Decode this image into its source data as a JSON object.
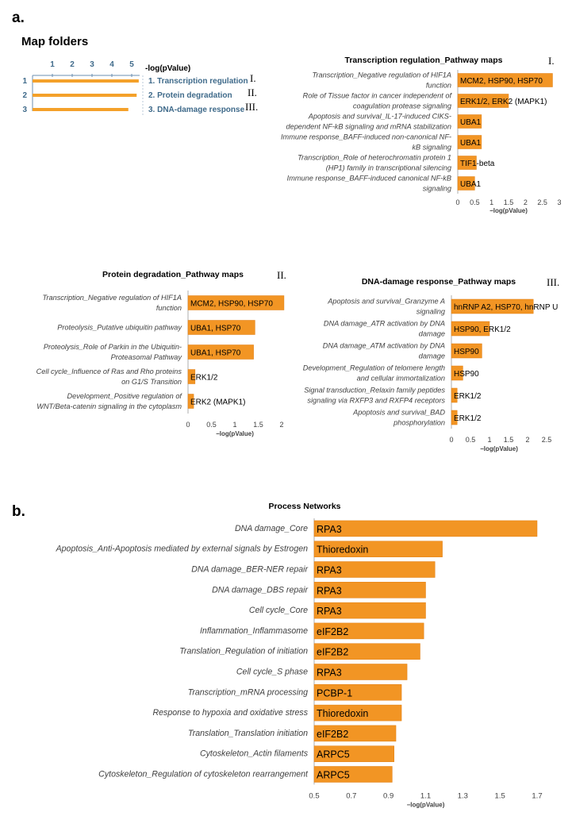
{
  "panel_labels": {
    "a": "a.",
    "b": "b."
  },
  "map_folders": {
    "title": "Map folders",
    "axis_label": "-log(pValue)",
    "ticks": [
      "1",
      "2",
      "3",
      "4",
      "5"
    ],
    "bar_color": "#f4a12a",
    "rows": [
      {
        "index": "1",
        "label": "1. Transcription regulation",
        "value": 5.1,
        "roman": "I."
      },
      {
        "index": "2",
        "label": "2. Protein degradation",
        "value": 5.0,
        "roman": "II."
      },
      {
        "index": "3",
        "label": "3. DNA-damage response",
        "value": 4.6,
        "roman": "III."
      }
    ]
  },
  "chart_data": [
    {
      "id": "transcription",
      "type": "bar",
      "orientation": "horizontal",
      "title": "Transcription regulation_Pathway maps",
      "roman": "I.",
      "xlabel": "−log(pValue)",
      "xlim": [
        0,
        3
      ],
      "xticks": [
        "0",
        "0.5",
        "1",
        "1.5",
        "2",
        "2.5",
        "3"
      ],
      "categories": [
        [
          "Transcription_Negative regulation of HIF1A",
          "function"
        ],
        [
          "Role of Tissue factor in cancer independent of",
          "coagulation protease signaling"
        ],
        [
          "Apoptosis and survival_IL-17-induced CIKS-",
          "dependent NF-kB signaling and mRNA stabilization"
        ],
        [
          "Immune response_BAFF-induced non-canonical NF-",
          "kB signaling"
        ],
        [
          "Transcription_Role of heterochromatin protein 1",
          "(HP1) family in transcriptional silencing"
        ],
        [
          "Immune response_BAFF-induced canonical NF-kB",
          "signaling"
        ]
      ],
      "values": [
        2.8,
        1.5,
        0.7,
        0.7,
        0.55,
        0.5
      ],
      "bar_labels": [
        "MCM2, HSP90, HSP70",
        "ERK1/2, ERK2 (MAPK1)",
        "UBA1",
        "UBA1",
        "TIF1-beta",
        "UBA1"
      ]
    },
    {
      "id": "protein",
      "type": "bar",
      "orientation": "horizontal",
      "title": "Protein degradation_Pathway maps",
      "roman": "II.",
      "xlabel": "−log(pValue)",
      "xlim": [
        0,
        2
      ],
      "xticks": [
        "0",
        "0.5",
        "1",
        "1.5",
        "2"
      ],
      "categories": [
        [
          "Transcription_Negative regulation of HIF1A",
          "function"
        ],
        [
          "Proteolysis_Putative ubiquitin pathway"
        ],
        [
          "Proteolysis_Role of Parkin in the Ubiquitin-",
          "Proteasomal Pathway"
        ],
        [
          "Cell cycle_Influence of Ras and Rho proteins",
          "on G1/S Transition"
        ],
        [
          "Development_Positive regulation of",
          "WNT/Beta-catenin signaling in the cytoplasm"
        ]
      ],
      "values": [
        2.05,
        1.43,
        1.4,
        0.15,
        0.12
      ],
      "bar_labels": [
        "MCM2, HSP90, HSP70",
        "UBA1, HSP70",
        "UBA1, HSP70",
        "ERK1/2",
        "ERK2 (MAPK1)"
      ]
    },
    {
      "id": "dna",
      "type": "bar",
      "orientation": "horizontal",
      "title": "DNA-damage response_Pathway maps",
      "roman": "III.",
      "xlabel": "−log(pValue)",
      "xlim": [
        0,
        2.5
      ],
      "xticks": [
        "0",
        "0.5",
        "1",
        "1.5",
        "2",
        "2.5"
      ],
      "categories": [
        [
          "Apoptosis and survival_Granzyme A",
          "signaling"
        ],
        [
          "DNA damage_ATR activation by DNA",
          "damage"
        ],
        [
          "DNA damage_ATM activation by DNA",
          "damage"
        ],
        [
          "Development_Regulation of telomere length",
          "and cellular immortalization"
        ],
        [
          "Signal transduction_Relaxin family peptides",
          "signaling via RXFP3 and RXFP4 receptors"
        ],
        [
          "Apoptosis and survival_BAD",
          "phosphorylation"
        ]
      ],
      "values": [
        2.15,
        1.0,
        0.8,
        0.3,
        0.15,
        0.15
      ],
      "bar_labels": [
        "hnRNP A2, HSP70, hnRNP U",
        "HSP90, ERK1/2",
        "HSP90",
        "HSP90",
        "ERK1/2",
        "ERK1/2"
      ]
    },
    {
      "id": "process",
      "type": "bar",
      "orientation": "horizontal",
      "title": "Process Networks",
      "xlabel": "−log(pValue)",
      "xlim": [
        0.5,
        1.7
      ],
      "xticks": [
        "0.5",
        "0.7",
        "0.9",
        "1.1",
        "1.3",
        "1.5",
        "1.7"
      ],
      "categories": [
        "DNA damage_Core",
        "Apoptosis_Anti-Apoptosis mediated by external signals by Estrogen",
        "DNA damage_BER-NER repair",
        "DNA damage_DBS repair",
        "Cell cycle_Core",
        "Inflammation_Inflammasome",
        "Translation_Regulation of initiation",
        "Cell cycle_S phase",
        "Transcription_mRNA processing",
        "Response to hypoxia and oxidative stress",
        "Translation_Translation initiation",
        "Cytoskeleton_Actin filaments",
        "Cytoskeleton_Regulation of cytoskeleton rearrangement"
      ],
      "values": [
        1.7,
        1.19,
        1.15,
        1.1,
        1.1,
        1.09,
        1.07,
        1.0,
        0.97,
        0.97,
        0.94,
        0.93,
        0.92
      ],
      "bar_labels": [
        "RPA3",
        "Thioredoxin",
        "RPA3",
        "RPA3",
        "RPA3",
        "eIF2B2",
        "eIF2B2",
        "RPA3",
        "PCBP-1",
        "Thioredoxin",
        "eIF2B2",
        "ARPC5",
        "ARPC5"
      ]
    }
  ],
  "colors": {
    "bar": "#f29524",
    "bar_edge": "#e07d10",
    "axis": "#9a9a9a"
  }
}
